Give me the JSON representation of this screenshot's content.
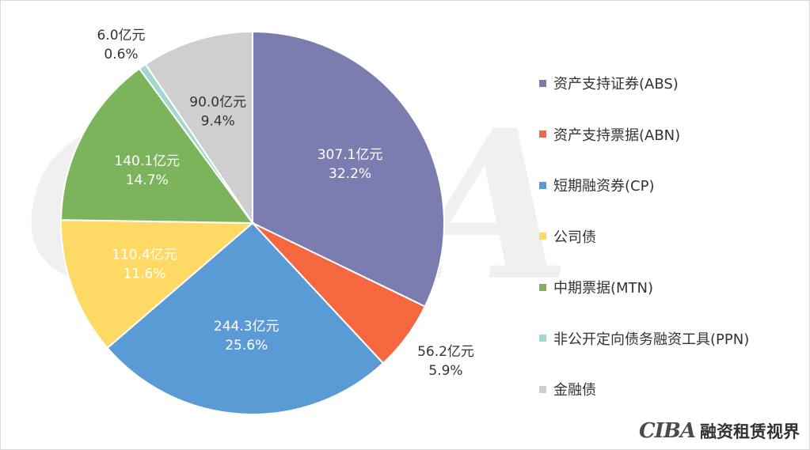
{
  "chart_data": {
    "type": "pie",
    "unit": "亿元",
    "start_angle_deg": 0,
    "direction": "clockwise",
    "slices": [
      {
        "name": "资产支持证券(ABS)",
        "value": 307.1,
        "percent": "32.2%",
        "color": "#7B7DB0",
        "value_label": "307.1亿元"
      },
      {
        "name": "资产支持票据(ABN)",
        "value": 56.2,
        "percent": "5.9%",
        "color": "#F4673F",
        "value_label": "56.2亿元"
      },
      {
        "name": "短期融资券(CP)",
        "value": 244.3,
        "percent": "25.6%",
        "color": "#5B9BD5",
        "value_label": "244.3亿元"
      },
      {
        "name": "公司债",
        "value": 110.4,
        "percent": "11.6%",
        "color": "#FFD966",
        "value_label": "110.4亿元"
      },
      {
        "name": "中期票据(MTN)",
        "value": 140.1,
        "percent": "14.7%",
        "color": "#7CB45B",
        "value_label": "140.1亿元"
      },
      {
        "name": "非公开定向债务融资工具(PPN)",
        "value": 6.0,
        "percent": "0.6%",
        "color": "#A0D9D0",
        "value_label": "6.0亿元"
      },
      {
        "name": "金融债",
        "value": 90.0,
        "percent": "9.4%",
        "color": "#D0CFCF",
        "value_label": "90.0亿元"
      }
    ],
    "legend_position": "right"
  },
  "watermark_text": "CIBA",
  "brand": {
    "logo": "CIBA",
    "text": "融资租赁视界"
  }
}
